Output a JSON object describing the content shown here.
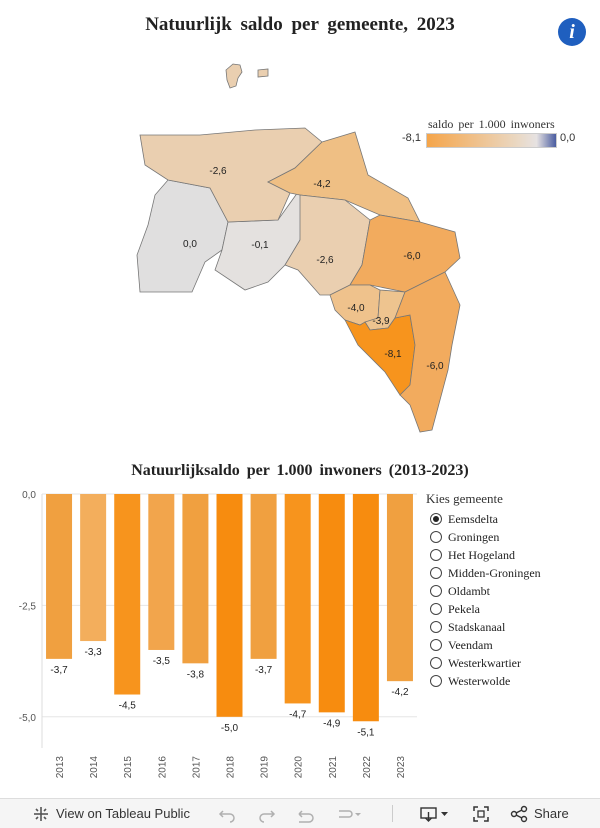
{
  "map": {
    "title": "Natuurlijk saldo per gemeente, 2023",
    "info_label": "i",
    "legend": {
      "title": "saldo per 1.000 inwoners",
      "min": "-8,1",
      "max": "0,0"
    },
    "regions": [
      {
        "name": "Westerkwartier",
        "label": "0,0",
        "value": 0.0,
        "color": "#e0dfdf"
      },
      {
        "name": "Groningen",
        "label": "-0,1",
        "value": -0.1,
        "color": "#e4e1df"
      },
      {
        "name": "Het Hogeland",
        "label": "-2,6",
        "value": -2.6,
        "color": "#eacfb0"
      },
      {
        "name": "Eemsdelta",
        "label": "-4,2",
        "value": -4.2,
        "color": "#efbf84"
      },
      {
        "name": "Midden-Groningen",
        "label": "-2,6",
        "value": -2.6,
        "color": "#eacfb0"
      },
      {
        "name": "Oldambt",
        "label": "-6,0",
        "value": -6.0,
        "color": "#f2ab5e"
      },
      {
        "name": "Veendam",
        "label": "-4,0",
        "value": -4.0,
        "color": "#efc28c"
      },
      {
        "name": "Pekela",
        "label": "-3,9",
        "value": -3.9,
        "color": "#eec48f"
      },
      {
        "name": "Stadskanaal",
        "label": "-8,1",
        "value": -8.1,
        "color": "#f7941d"
      },
      {
        "name": "Westerwolde",
        "label": "-6,0",
        "value": -6.0,
        "color": "#f2ab5e"
      }
    ]
  },
  "chart_data": {
    "type": "bar",
    "title": "Natuurlijksaldo per 1.000 inwoners (2013-2023)",
    "categories": [
      "2013",
      "2014",
      "2015",
      "2016",
      "2017",
      "2018",
      "2019",
      "2020",
      "2021",
      "2022",
      "2023"
    ],
    "values": [
      -3.7,
      -3.3,
      -4.5,
      -3.5,
      -3.8,
      -5.0,
      -3.7,
      -4.7,
      -4.9,
      -5.1,
      -4.2
    ],
    "value_labels": [
      "-3,7",
      "-3,3",
      "-4,5",
      "-3,5",
      "-3,8",
      "-5,0",
      "-3,7",
      "-4,7",
      "-4,9",
      "-5,1",
      "-4,2"
    ],
    "colors": [
      "#f0a040",
      "#f3ae5c",
      "#f7941d",
      "#f2a54c",
      "#f0a040",
      "#f78c0f",
      "#f0a040",
      "#f7941d",
      "#f78c0f",
      "#f78c0f",
      "#f0a040"
    ],
    "yticks": [
      0,
      -2.5,
      -5
    ],
    "ytick_labels": [
      "0,0",
      "-2,5",
      "-5,0"
    ],
    "ylim": [
      -5.7,
      0
    ],
    "grid": true,
    "xlabel": "",
    "ylabel": ""
  },
  "filter": {
    "title": "Kies gemeente",
    "options": [
      "Eemsdelta",
      "Groningen",
      "Het Hogeland",
      "Midden-Groningen",
      "Oldambt",
      "Pekela",
      "Stadskanaal",
      "Veendam",
      "Westerkwartier",
      "Westerwolde"
    ],
    "selected": "Eemsdelta"
  },
  "toolbar": {
    "view_label": "View on Tableau Public",
    "share_label": "Share"
  }
}
